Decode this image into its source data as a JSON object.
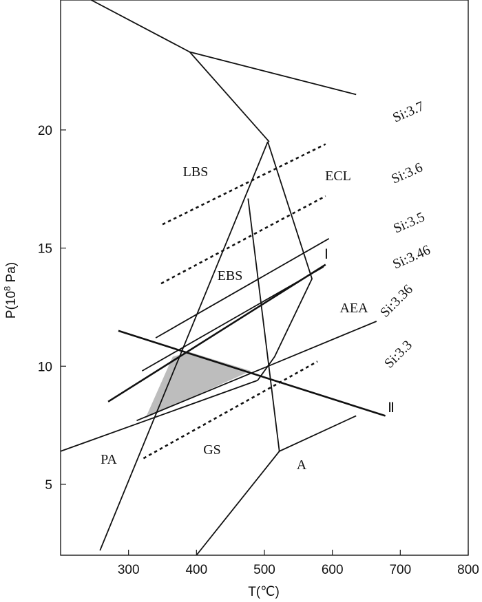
{
  "chart_data": {
    "type": "line",
    "xlabel": "T(℃)",
    "ylabel": "P(10⁸ Pa)",
    "xlim": [
      200,
      800
    ],
    "ylim": [
      2,
      25.5
    ],
    "xticks": [
      300,
      400,
      500,
      600,
      700,
      800
    ],
    "yticks": [
      5,
      10,
      15,
      20
    ],
    "grid": false,
    "facies_boundaries": [
      {
        "name": "boundary-top",
        "points": [
          [
            245,
            25.5
          ],
          [
            390,
            23.3
          ],
          [
            635,
            21.5
          ]
        ]
      },
      {
        "name": "boundary-lbs-ecl",
        "points": [
          [
            390,
            23.3
          ],
          [
            507,
            19.5
          ]
        ]
      },
      {
        "name": "boundary-ebs-left",
        "points": [
          [
            258,
            2.2
          ],
          [
            505,
            19.5
          ]
        ]
      },
      {
        "name": "boundary-ebs-right",
        "points": [
          [
            505,
            19.5
          ],
          [
            570,
            13.7
          ],
          [
            515,
            10.4
          ],
          [
            490,
            9.4
          ]
        ]
      },
      {
        "name": "boundary-ebs-aea",
        "points": [
          [
            476,
            17.1
          ],
          [
            522,
            6.4
          ]
        ]
      },
      {
        "name": "boundary-ga",
        "points": [
          [
            200,
            6.4
          ],
          [
            490,
            9.4
          ]
        ]
      },
      {
        "name": "boundary-a",
        "points": [
          [
            400,
            2.0
          ],
          [
            522,
            6.4
          ],
          [
            635,
            7.9
          ]
        ]
      }
    ],
    "series": [
      {
        "name": "Si:3.7",
        "style": "dashed",
        "points": [
          [
            350,
            16.0
          ],
          [
            590,
            19.4
          ]
        ]
      },
      {
        "name": "Si:3.6",
        "style": "dashed",
        "points": [
          [
            348,
            13.5
          ],
          [
            590,
            17.2
          ]
        ]
      },
      {
        "name": "Si:3.5",
        "style": "solid",
        "points": [
          [
            340,
            11.2
          ],
          [
            595,
            15.4
          ]
        ]
      },
      {
        "name": "Si:3.46",
        "style": "solid",
        "points": [
          [
            320,
            9.8
          ],
          [
            587,
            14.2
          ]
        ]
      },
      {
        "name": "Si:3.36",
        "style": "solid",
        "points": [
          [
            312,
            7.7
          ],
          [
            665,
            11.9
          ]
        ]
      },
      {
        "name": "Si:3.3",
        "style": "dashed",
        "points": [
          [
            322,
            6.1
          ],
          [
            578,
            10.2
          ]
        ]
      },
      {
        "name": "Ⅰ",
        "style": "bold",
        "points": [
          [
            270,
            8.5
          ],
          [
            590,
            14.3
          ]
        ]
      },
      {
        "name": "Ⅱ",
        "style": "bold",
        "points": [
          [
            285,
            11.5
          ],
          [
            678,
            7.9
          ]
        ]
      }
    ],
    "shaded_region": [
      [
        365,
        10.4
      ],
      [
        390,
        10.6
      ],
      [
        480,
        9.8
      ],
      [
        325,
        7.8
      ]
    ],
    "region_labels": [
      "LBS",
      "ECL",
      "EBS",
      "AEA",
      "GS",
      "PA",
      "A"
    ],
    "reaction_labels": [
      "Ⅰ",
      "Ⅱ"
    ]
  },
  "labels": {
    "xlabel": "T(℃)",
    "ylabel_main": "P(10",
    "ylabel_exp": "8",
    "ylabel_unit": " Pa)",
    "field_LBS": "LBS",
    "field_ECL": "ECL",
    "field_EBS": "EBS",
    "field_AEA": "AEA",
    "field_GS": "GS",
    "field_PA": "PA",
    "field_A": "A",
    "reaction_I": "Ⅰ",
    "reaction_II": "Ⅱ",
    "iso_37": "Si:3.7",
    "iso_36": "Si:3.6",
    "iso_35": "Si:3.5",
    "iso_346": "Si:3.46",
    "iso_336": "Si:3.36",
    "iso_33": "Si:3.3"
  }
}
